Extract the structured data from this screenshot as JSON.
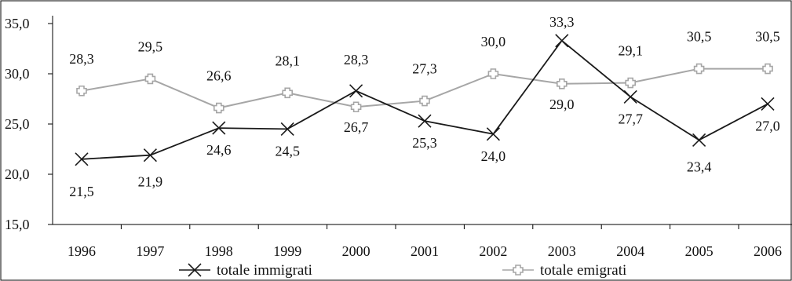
{
  "chart_data": {
    "type": "line",
    "title": "",
    "xlabel": "",
    "ylabel": "",
    "categories": [
      "1996",
      "1997",
      "1998",
      "1999",
      "2000",
      "2001",
      "2002",
      "2003",
      "2004",
      "2005",
      "2006"
    ],
    "ylim": [
      15.0,
      35.0
    ],
    "yticks": [
      "35,0",
      "30,0",
      "25,0",
      "20,0",
      "15,0"
    ],
    "ytick_values": [
      35,
      30,
      25,
      20,
      15
    ],
    "grid": false,
    "legend_position": "bottom",
    "series": [
      {
        "name": "totale immigrati",
        "color": "#1a1a1a",
        "marker": "x",
        "values": [
          21.5,
          21.9,
          24.6,
          24.5,
          28.3,
          25.3,
          24.0,
          33.3,
          27.7,
          23.4,
          27.0
        ],
        "labels": [
          "21,5",
          "21,9",
          "24,6",
          "24,5",
          "28,3",
          "25,3",
          "24,0",
          "33,3",
          "27,7",
          "23,4",
          "27,0"
        ]
      },
      {
        "name": "totale emigrati",
        "color": "#a6a6a6",
        "marker": "plus-square",
        "values": [
          28.3,
          29.5,
          26.6,
          28.1,
          26.7,
          27.3,
          30.0,
          29.0,
          29.1,
          30.5,
          30.5
        ],
        "labels": [
          "28,3",
          "29,5",
          "26,6",
          "28,1",
          "26,7",
          "27,3",
          "30,0",
          "29,0",
          "29,1",
          "30,5",
          "30,5"
        ]
      }
    ]
  }
}
